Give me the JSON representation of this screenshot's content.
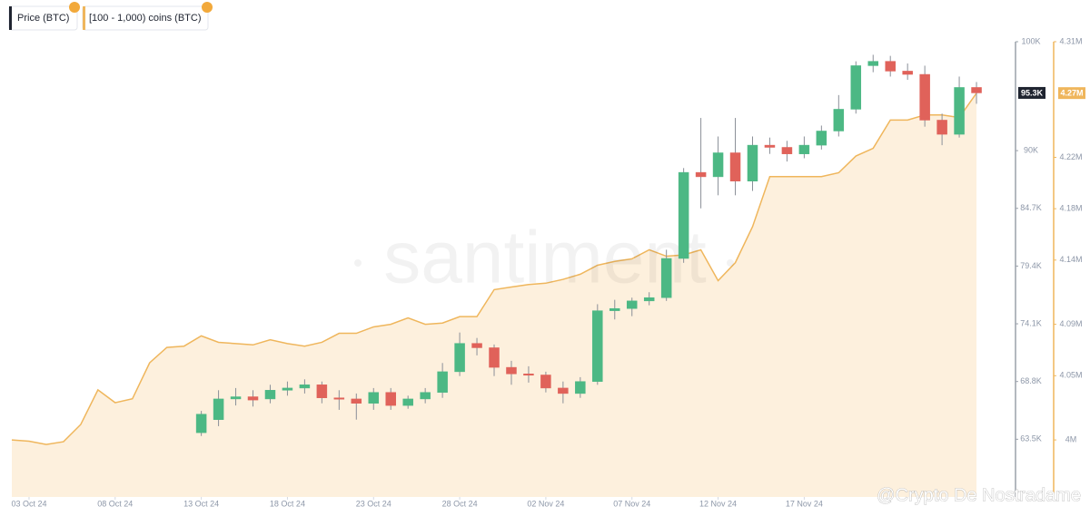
{
  "chart_data": {
    "type": "candlestick",
    "watermark": "santiment",
    "overlay_text": "@Crypto De Nostradame",
    "x": [
      "2024-10-02",
      "2024-10-03",
      "2024-10-04",
      "2024-10-05",
      "2024-10-06",
      "2024-10-07",
      "2024-10-08",
      "2024-10-09",
      "2024-10-10",
      "2024-10-11",
      "2024-10-12",
      "2024-10-13",
      "2024-10-14",
      "2024-10-15",
      "2024-10-16",
      "2024-10-17",
      "2024-10-18",
      "2024-10-19",
      "2024-10-20",
      "2024-10-21",
      "2024-10-22",
      "2024-10-23",
      "2024-10-24",
      "2024-10-25",
      "2024-10-26",
      "2024-10-27",
      "2024-10-28",
      "2024-10-29",
      "2024-10-30",
      "2024-10-31",
      "2024-11-01",
      "2024-11-02",
      "2024-11-03",
      "2024-11-04",
      "2024-11-05",
      "2024-11-06",
      "2024-11-07",
      "2024-11-08",
      "2024-11-09",
      "2024-11-10",
      "2024-11-11",
      "2024-11-12",
      "2024-11-13",
      "2024-11-14",
      "2024-11-15",
      "2024-11-16",
      "2024-11-17",
      "2024-11-18",
      "2024-11-19",
      "2024-11-20",
      "2024-11-21",
      "2024-11-22",
      "2024-11-23",
      "2024-11-24",
      "2024-11-25",
      "2024-11-26",
      "2024-11-27"
    ],
    "xlim": [
      "2024-10-02",
      "2024-11-28"
    ],
    "xticks": [
      {
        "value": "2024-10-03",
        "label": "03 Oct 24"
      },
      {
        "value": "2024-10-08",
        "label": "08 Oct 24"
      },
      {
        "value": "2024-10-13",
        "label": "13 Oct 24"
      },
      {
        "value": "2024-10-18",
        "label": "18 Oct 24"
      },
      {
        "value": "2024-10-23",
        "label": "23 Oct 24"
      },
      {
        "value": "2024-10-28",
        "label": "28 Oct 24"
      },
      {
        "value": "2024-11-02",
        "label": "02 Nov 24"
      },
      {
        "value": "2024-11-07",
        "label": "07 Nov 24"
      },
      {
        "value": "2024-11-12",
        "label": "12 Nov 24"
      },
      {
        "value": "2024-11-17",
        "label": "17 Nov 24"
      }
    ],
    "ylim": [
      58200,
      100000
    ],
    "yticks": [
      {
        "value": 100000,
        "label": "100K"
      },
      {
        "value": 90000,
        "label": "90K"
      },
      {
        "value": 84700,
        "label": "84.7K"
      },
      {
        "value": 79400,
        "label": "79.4K"
      },
      {
        "value": 74100,
        "label": "74.1K"
      },
      {
        "value": 68800,
        "label": "68.8K"
      },
      {
        "value": 63500,
        "label": "63.5K"
      }
    ],
    "y2lim": [
      3955600,
      4310000
    ],
    "y2ticks": [
      {
        "value": 4310000,
        "label": "4.31M"
      },
      {
        "value": 4220000,
        "label": "4.22M"
      },
      {
        "value": 4180000,
        "label": "4.18M"
      },
      {
        "value": 4140000,
        "label": "4.14M"
      },
      {
        "value": 4090000,
        "label": "4.09M"
      },
      {
        "value": 4050000,
        "label": "4.05M"
      },
      {
        "value": 4000000,
        "label": "4M"
      }
    ],
    "series": [
      {
        "name": "Price (BTC)",
        "type": "candlestick",
        "color": "#1f2430",
        "color_up": "#4cb884",
        "color_down": "#e0625a",
        "current_label": "95.3K",
        "open": [
          null,
          null,
          null,
          null,
          null,
          null,
          null,
          null,
          null,
          null,
          null,
          64100,
          65300,
          67200,
          67400,
          67200,
          68000,
          68200,
          68500,
          67300,
          67200,
          66800,
          67800,
          66600,
          67200,
          67800,
          69700,
          72300,
          71900,
          70100,
          69500,
          69400,
          68200,
          67700,
          68800,
          75300,
          75500,
          76200,
          76500,
          80100,
          88000,
          87600,
          89800,
          87200,
          90500,
          90300,
          89700,
          90500,
          91800,
          93800,
          97800,
          98200,
          97300,
          97000,
          92800,
          91500,
          95800
        ],
        "high": [
          null,
          null,
          null,
          null,
          null,
          null,
          null,
          null,
          null,
          null,
          null,
          66100,
          68000,
          68200,
          68000,
          68500,
          68800,
          69000,
          68800,
          68000,
          67700,
          68200,
          68200,
          67500,
          68200,
          70500,
          73300,
          72800,
          72200,
          70700,
          70200,
          69700,
          68800,
          69200,
          75900,
          76300,
          76500,
          77000,
          80900,
          88400,
          93000,
          91300,
          93000,
          91300,
          91200,
          90900,
          91300,
          92300,
          95100,
          98200,
          98800,
          98700,
          98000,
          97800,
          93400,
          96800,
          96300
        ],
        "low": [
          null,
          null,
          null,
          null,
          null,
          null,
          null,
          null,
          null,
          null,
          null,
          63800,
          64700,
          66600,
          66500,
          66800,
          67500,
          67700,
          66800,
          66200,
          65300,
          66200,
          66200,
          66300,
          66800,
          67300,
          69300,
          71200,
          69300,
          68500,
          68700,
          67800,
          66800,
          67300,
          68500,
          74500,
          74800,
          75800,
          76200,
          79700,
          84700,
          85900,
          85900,
          86300,
          89700,
          89000,
          89300,
          90100,
          91300,
          93400,
          97200,
          96800,
          96500,
          92200,
          90500,
          91200,
          94300
        ],
        "close": [
          null,
          null,
          null,
          null,
          null,
          null,
          null,
          null,
          null,
          null,
          null,
          65800,
          67200,
          67400,
          67100,
          68000,
          68200,
          68500,
          67300,
          67200,
          66800,
          67800,
          66600,
          67200,
          67800,
          69700,
          72300,
          71900,
          70100,
          69500,
          69400,
          68200,
          67700,
          68800,
          75300,
          75500,
          76200,
          76500,
          80100,
          88000,
          87600,
          89800,
          87200,
          90500,
          90300,
          89700,
          90500,
          91800,
          93800,
          97800,
          98200,
          97300,
          97000,
          92800,
          91500,
          95800,
          95300
        ]
      },
      {
        "name": "[100 - 1,000) coins (BTC)",
        "type": "area",
        "axis": "y2",
        "color": "#efb65c",
        "fill": "#fdf0dd",
        "current_label": "4.27M",
        "values": [
          4000000,
          3999000,
          3996500,
          3998600,
          4012000,
          4039000,
          4029000,
          4032000,
          4060000,
          4072000,
          4073000,
          4081000,
          4076000,
          4075000,
          4074000,
          4078000,
          4075000,
          4073000,
          4076000,
          4083000,
          4083000,
          4088000,
          4090000,
          4095000,
          4090000,
          4091000,
          4096000,
          4096000,
          4117000,
          4119000,
          4121000,
          4122000,
          4125000,
          4129000,
          4136000,
          4139000,
          4141000,
          4148000,
          4143000,
          4144000,
          4148000,
          4124000,
          4138000,
          4166000,
          4205000,
          4205000,
          4205000,
          4205000,
          4208000,
          4221000,
          4227000,
          4249000,
          4249000,
          4253000,
          4253000,
          4251000,
          4270000
        ]
      }
    ]
  }
}
